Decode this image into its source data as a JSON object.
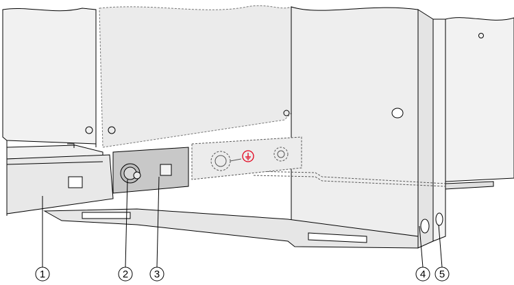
{
  "callouts": [
    {
      "id": "1",
      "label": "1"
    },
    {
      "id": "2",
      "label": "2"
    },
    {
      "id": "3",
      "label": "3"
    },
    {
      "id": "4",
      "label": "4"
    },
    {
      "id": "5",
      "label": "5"
    }
  ],
  "colors": {
    "panel": "#f0f0f0",
    "panel_dark": "#e2e2e2",
    "highlight_plate": "#c8c8c8",
    "line": "#000000",
    "ground_symbol": "#e2001a"
  },
  "icons": [
    "ground-symbol-icon",
    "bolt-nut-icon"
  ]
}
